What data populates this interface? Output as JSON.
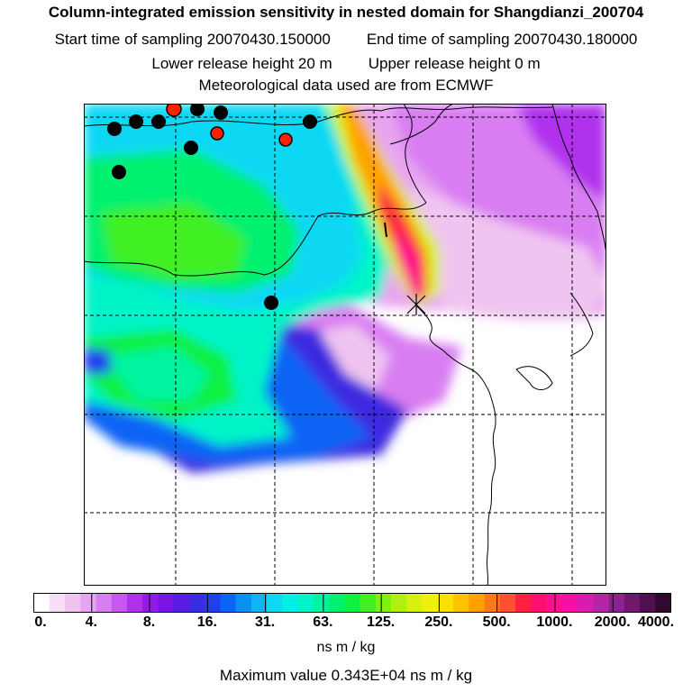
{
  "header": {
    "title": "Column-integrated emission sensitivity in nested domain for Shangdianzi_200704",
    "start_label": "Start time of sampling 20070430.150000",
    "end_label": "End time of sampling 20070430.180000",
    "lower_label": "Lower release height   20 m",
    "upper_label": "Upper release height    0 m",
    "met_label": "Meteorological data used are from ECMWF"
  },
  "legend": {
    "tick_labels": [
      "0.",
      "4.",
      "8.",
      "16.",
      "31.",
      "63.",
      "125.",
      "250.",
      "500.",
      "1000.",
      "2000.",
      "4000."
    ],
    "colors": [
      "#ffffff",
      "#f7e0f7",
      "#f0c4f0",
      "#e8a4f0",
      "#d97ef2",
      "#c956f0",
      "#b030ec",
      "#9418ea",
      "#7a14e4",
      "#5a1ce0",
      "#3c2ce0",
      "#2040ec",
      "#0a64f4",
      "#0890f4",
      "#10b4f4",
      "#10d8f4",
      "#00f0e8",
      "#00f4c8",
      "#00f4a0",
      "#00f070",
      "#10f040",
      "#40f020",
      "#80f010",
      "#b0f010",
      "#d8f010",
      "#f0f010",
      "#f8e000",
      "#ffc000",
      "#ffa000",
      "#ff7818",
      "#ff5030",
      "#ff2040",
      "#ff1070",
      "#ff1090",
      "#f410a8",
      "#d81cb0",
      "#b424a4",
      "#902090",
      "#701870",
      "#501050",
      "#300830"
    ],
    "unit_label": "ns m / kg",
    "max_label": "Maximum value  0.343E+04 ns m / kg"
  },
  "map": {
    "release_marker": "x-marker-icon",
    "station_color_black": "#000000",
    "station_color_red": "#ff2000"
  }
}
